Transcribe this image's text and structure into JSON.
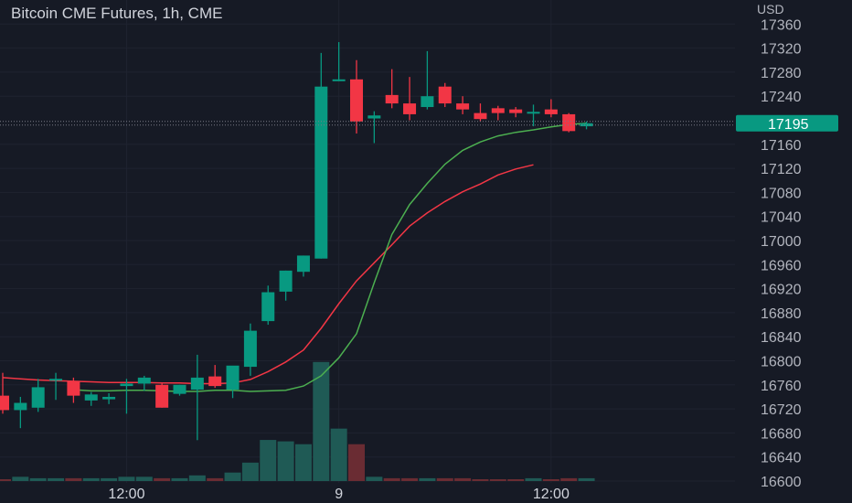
{
  "chart_data": {
    "type": "candlestick",
    "title": "Bitcoin CME Futures, 1h, CME",
    "currency": "USD",
    "ylim": [
      16600,
      17370
    ],
    "y_ticks": [
      17360,
      17320,
      17280,
      17240,
      17160,
      17120,
      17080,
      17040,
      17000,
      16960,
      16920,
      16880,
      16840,
      16800,
      16760,
      16720,
      16680,
      16640,
      16600
    ],
    "x_ticks": [
      {
        "label": "12:00",
        "index": 7
      },
      {
        "label": "9",
        "index": 19
      },
      {
        "label": "12:00",
        "index": 31
      }
    ],
    "last_price": 17195,
    "colors": {
      "background": "#161a25",
      "up": "#089981",
      "down": "#f23645",
      "ma_fast": "#4caf50",
      "ma_slow": "#f23645",
      "price_label": "#089981",
      "text": "#b2b5be"
    },
    "candles": [
      {
        "o": 16742,
        "h": 16780,
        "l": 16712,
        "c": 16718,
        "v": 1
      },
      {
        "o": 16718,
        "h": 16740,
        "l": 16688,
        "c": 16730,
        "v": 3
      },
      {
        "o": 16722,
        "h": 16770,
        "l": 16715,
        "c": 16756,
        "v": 2
      },
      {
        "o": 16770,
        "h": 16780,
        "l": 16735,
        "c": 16770,
        "v": 2
      },
      {
        "o": 16766,
        "h": 16772,
        "l": 16730,
        "c": 16742,
        "v": 2
      },
      {
        "o": 16734,
        "h": 16748,
        "l": 16725,
        "c": 16744,
        "v": 2
      },
      {
        "o": 16736,
        "h": 16746,
        "l": 16728,
        "c": 16740,
        "v": 2
      },
      {
        "o": 16758,
        "h": 16770,
        "l": 16712,
        "c": 16762,
        "v": 3
      },
      {
        "o": 16762,
        "h": 16775,
        "l": 16750,
        "c": 16772,
        "v": 3
      },
      {
        "o": 16760,
        "h": 16762,
        "l": 16722,
        "c": 16722,
        "v": 2
      },
      {
        "o": 16745,
        "h": 16760,
        "l": 16742,
        "c": 16760,
        "v": 2
      },
      {
        "o": 16752,
        "h": 16810,
        "l": 16668,
        "c": 16772,
        "v": 4
      },
      {
        "o": 16774,
        "h": 16793,
        "l": 16755,
        "c": 16758,
        "v": 2
      },
      {
        "o": 16752,
        "h": 16790,
        "l": 16738,
        "c": 16792,
        "v": 6
      },
      {
        "o": 16790,
        "h": 16862,
        "l": 16775,
        "c": 16850,
        "v": 13
      },
      {
        "o": 16866,
        "h": 16925,
        "l": 16860,
        "c": 16914,
        "v": 29
      },
      {
        "o": 16915,
        "h": 16950,
        "l": 16900,
        "c": 16950,
        "v": 28
      },
      {
        "o": 16948,
        "h": 16975,
        "l": 16940,
        "c": 16975,
        "v": 26
      },
      {
        "o": 16970,
        "h": 17312,
        "l": 16970,
        "c": 17256,
        "v": 84
      },
      {
        "o": 17268,
        "h": 17330,
        "l": 17265,
        "c": 17268,
        "v": 37
      },
      {
        "o": 17268,
        "h": 17300,
        "l": 17178,
        "c": 17198,
        "v": 26
      },
      {
        "o": 17203,
        "h": 17215,
        "l": 17162,
        "c": 17208,
        "v": 3
      },
      {
        "o": 17242,
        "h": 17285,
        "l": 17220,
        "c": 17228,
        "v": 2
      },
      {
        "o": 17228,
        "h": 17272,
        "l": 17200,
        "c": 17210,
        "v": 2
      },
      {
        "o": 17222,
        "h": 17315,
        "l": 17218,
        "c": 17240,
        "v": 2
      },
      {
        "o": 17256,
        "h": 17262,
        "l": 17222,
        "c": 17228,
        "v": 2
      },
      {
        "o": 17228,
        "h": 17240,
        "l": 17210,
        "c": 17218,
        "v": 2
      },
      {
        "o": 17212,
        "h": 17228,
        "l": 17198,
        "c": 17202,
        "v": 1
      },
      {
        "o": 17220,
        "h": 17224,
        "l": 17200,
        "c": 17212,
        "v": 1
      },
      {
        "o": 17218,
        "h": 17222,
        "l": 17205,
        "c": 17212,
        "v": 1
      },
      {
        "o": 17214,
        "h": 17226,
        "l": 17190,
        "c": 17214,
        "v": 2
      },
      {
        "o": 17218,
        "h": 17235,
        "l": 17205,
        "c": 17210,
        "v": 1
      },
      {
        "o": 17210,
        "h": 17212,
        "l": 17180,
        "c": 17182,
        "v": 2
      },
      {
        "o": 17190,
        "h": 17198,
        "l": 17185,
        "c": 17195,
        "v": 2
      }
    ],
    "ma_fast": [
      16752,
      16750,
      16750,
      16751,
      16751,
      16750,
      16749,
      16749,
      16751,
      16751,
      16749,
      16750,
      16751,
      16758,
      16775,
      16805,
      16845,
      16930,
      17010,
      17060,
      17095,
      17127,
      17150,
      17164,
      17174,
      17180,
      17184,
      17189,
      17193,
      17195
    ],
    "ma_fast_start": 4,
    "ma_slow": [
      16772,
      16770,
      16768,
      16767,
      16766,
      16765,
      16764,
      16764,
      16764,
      16763,
      16763,
      16762,
      16762,
      16763,
      16769,
      16782,
      16798,
      16818,
      16854,
      16895,
      16933,
      16963,
      16993,
      17024,
      17046,
      17065,
      17081,
      17094,
      17109,
      17119,
      17126
    ],
    "ma_slow_start": 0
  }
}
